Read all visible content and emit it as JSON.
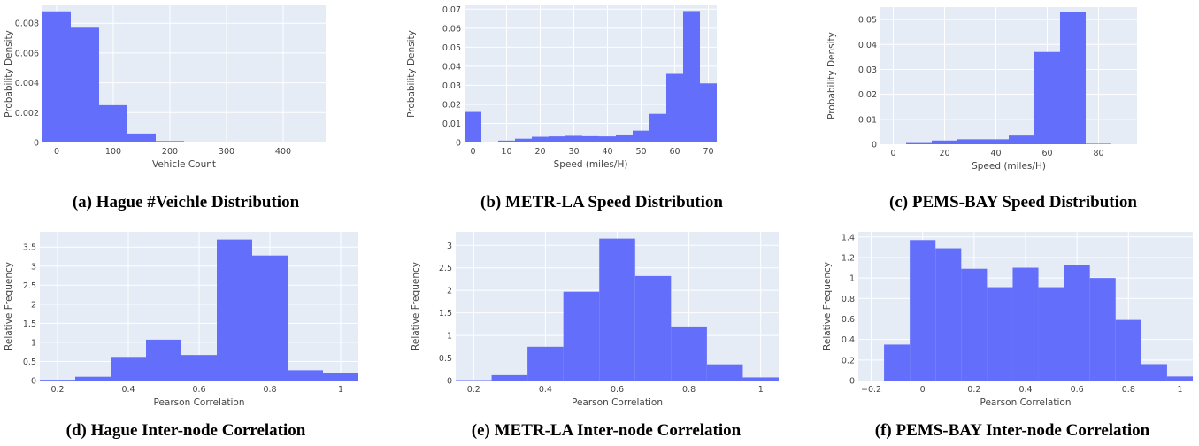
{
  "colors": {
    "bar": "#636efa",
    "plot_bg": "#e5ecf6",
    "grid": "#ffffff",
    "text": "#444444"
  },
  "chart_data": [
    {
      "type": "bar",
      "caption": "(a) Hague #Veichle Distribution",
      "xlabel": "Vehicle Count",
      "ylabel": "Probability Density",
      "xlim": [
        -25,
        475
      ],
      "ylim": [
        0,
        0.0092
      ],
      "xticks": [
        0,
        100,
        200,
        300,
        400
      ],
      "xtick_labels": [
        "0",
        "100",
        "200",
        "300",
        "400"
      ],
      "yticks": [
        0,
        0.002,
        0.004,
        0.006,
        0.008
      ],
      "ytick_labels": [
        "0",
        "0.002",
        "0.004",
        "0.006",
        "0.008"
      ],
      "bin_edges": [
        -25,
        25,
        75,
        125,
        175,
        225,
        275,
        325,
        375,
        425,
        475
      ],
      "values": [
        0.0088,
        0.0077,
        0.0025,
        0.0006,
        0.0001,
        2e-05,
        0,
        0,
        0,
        0
      ]
    },
    {
      "type": "bar",
      "caption": "(b) METR-LA Speed Distribution",
      "xlabel": "Speed (miles/H)",
      "ylabel": "Probability Density",
      "xlim": [
        -2.5,
        72.5
      ],
      "ylim": [
        0,
        0.072
      ],
      "xticks": [
        0,
        10,
        20,
        30,
        40,
        50,
        60,
        70
      ],
      "xtick_labels": [
        "0",
        "10",
        "20",
        "30",
        "40",
        "50",
        "60",
        "70"
      ],
      "yticks": [
        0,
        0.01,
        0.02,
        0.03,
        0.04,
        0.05,
        0.06,
        0.07
      ],
      "ytick_labels": [
        "0",
        "0.01",
        "0.02",
        "0.03",
        "0.04",
        "0.05",
        "0.06",
        "0.07"
      ],
      "bin_edges": [
        -2.5,
        2.5,
        7.5,
        12.5,
        17.5,
        22.5,
        27.5,
        32.5,
        37.5,
        42.5,
        47.5,
        52.5,
        57.5,
        62.5,
        67.5,
        72.5
      ],
      "values": [
        0.016,
        0.0,
        0.001,
        0.002,
        0.003,
        0.0032,
        0.0035,
        0.0033,
        0.0032,
        0.0042,
        0.0062,
        0.015,
        0.036,
        0.069,
        0.031
      ]
    },
    {
      "type": "bar",
      "caption": "(c) PEMS-BAY Speed Distribution",
      "xlabel": "Speed (miles/H)",
      "ylabel": "Probability Density",
      "xlim": [
        -5,
        95
      ],
      "ylim": [
        0,
        0.055
      ],
      "xticks": [
        0,
        20,
        40,
        60,
        80
      ],
      "xtick_labels": [
        "0",
        "20",
        "40",
        "60",
        "80"
      ],
      "yticks": [
        0,
        0.01,
        0.02,
        0.03,
        0.04,
        0.05
      ],
      "ytick_labels": [
        "0",
        "0.01",
        "0.02",
        "0.03",
        "0.04",
        "0.05"
      ],
      "bin_edges": [
        5,
        15,
        25,
        35,
        45,
        55,
        65,
        75,
        85
      ],
      "values": [
        0.0005,
        0.0015,
        0.002,
        0.002,
        0.0035,
        0.037,
        0.053,
        0.0002
      ]
    },
    {
      "type": "bar",
      "caption": "(d) Hague Inter-node Correlation",
      "xlabel": "Pearson Correlation",
      "ylabel": "Relative Frequency",
      "xlim": [
        0.15,
        1.05
      ],
      "ylim": [
        0,
        3.9
      ],
      "xticks": [
        0.2,
        0.4,
        0.6,
        0.8,
        1
      ],
      "xtick_labels": [
        "0.2",
        "0.4",
        "0.6",
        "0.8",
        "1"
      ],
      "yticks": [
        0,
        0.5,
        1,
        1.5,
        2,
        2.5,
        3,
        3.5
      ],
      "ytick_labels": [
        "0",
        "0.5",
        "1",
        "1.5",
        "2",
        "2.5",
        "3",
        "3.5"
      ],
      "bin_edges": [
        0.15,
        0.25,
        0.35,
        0.45,
        0.55,
        0.65,
        0.75,
        0.85,
        0.95,
        1.05
      ],
      "values": [
        0.02,
        0.1,
        0.62,
        1.07,
        0.67,
        3.7,
        3.28,
        0.27,
        0.2
      ]
    },
    {
      "type": "bar",
      "caption": "(e) METR-LA Inter-node Correlation",
      "xlabel": "Pearson Correlation",
      "ylabel": "Relative Frequency",
      "xlim": [
        0.15,
        1.05
      ],
      "ylim": [
        0,
        3.3
      ],
      "xticks": [
        0.2,
        0.4,
        0.6,
        0.8,
        1
      ],
      "xtick_labels": [
        "0.2",
        "0.4",
        "0.6",
        "0.8",
        "1"
      ],
      "yticks": [
        0,
        0.5,
        1,
        1.5,
        2,
        2.5,
        3
      ],
      "ytick_labels": [
        "0",
        "0.5",
        "1",
        "1.5",
        "2",
        "2.5",
        "3"
      ],
      "bin_edges": [
        0.15,
        0.25,
        0.35,
        0.45,
        0.55,
        0.65,
        0.75,
        0.85,
        0.95,
        1.05
      ],
      "values": [
        0.01,
        0.12,
        0.75,
        1.97,
        3.15,
        2.32,
        1.2,
        0.36,
        0.07
      ]
    },
    {
      "type": "bar",
      "caption": "(f) PEMS-BAY Inter-node Correlation",
      "xlabel": "Pearson Correlation",
      "ylabel": "Relative Frequency",
      "xlim": [
        -0.25,
        1.05
      ],
      "ylim": [
        0,
        1.45
      ],
      "xticks": [
        -0.2,
        0,
        0.2,
        0.4,
        0.6,
        0.8,
        1
      ],
      "xtick_labels": [
        "−0.2",
        "0",
        "0.2",
        "0.4",
        "0.6",
        "0.8",
        "1"
      ],
      "yticks": [
        0,
        0.2,
        0.4,
        0.6,
        0.8,
        1,
        1.2,
        1.4
      ],
      "ytick_labels": [
        "0",
        "0.2",
        "0.4",
        "0.6",
        "0.8",
        "1",
        "1.2",
        "1.4"
      ],
      "bin_edges": [
        -0.15,
        -0.05,
        0.05,
        0.15,
        0.25,
        0.35,
        0.45,
        0.55,
        0.65,
        0.75,
        0.85,
        0.95,
        1.05
      ],
      "values": [
        0.35,
        1.37,
        1.29,
        1.09,
        0.91,
        1.1,
        0.91,
        1.13,
        1.0,
        0.59,
        0.16,
        0.04
      ]
    }
  ]
}
